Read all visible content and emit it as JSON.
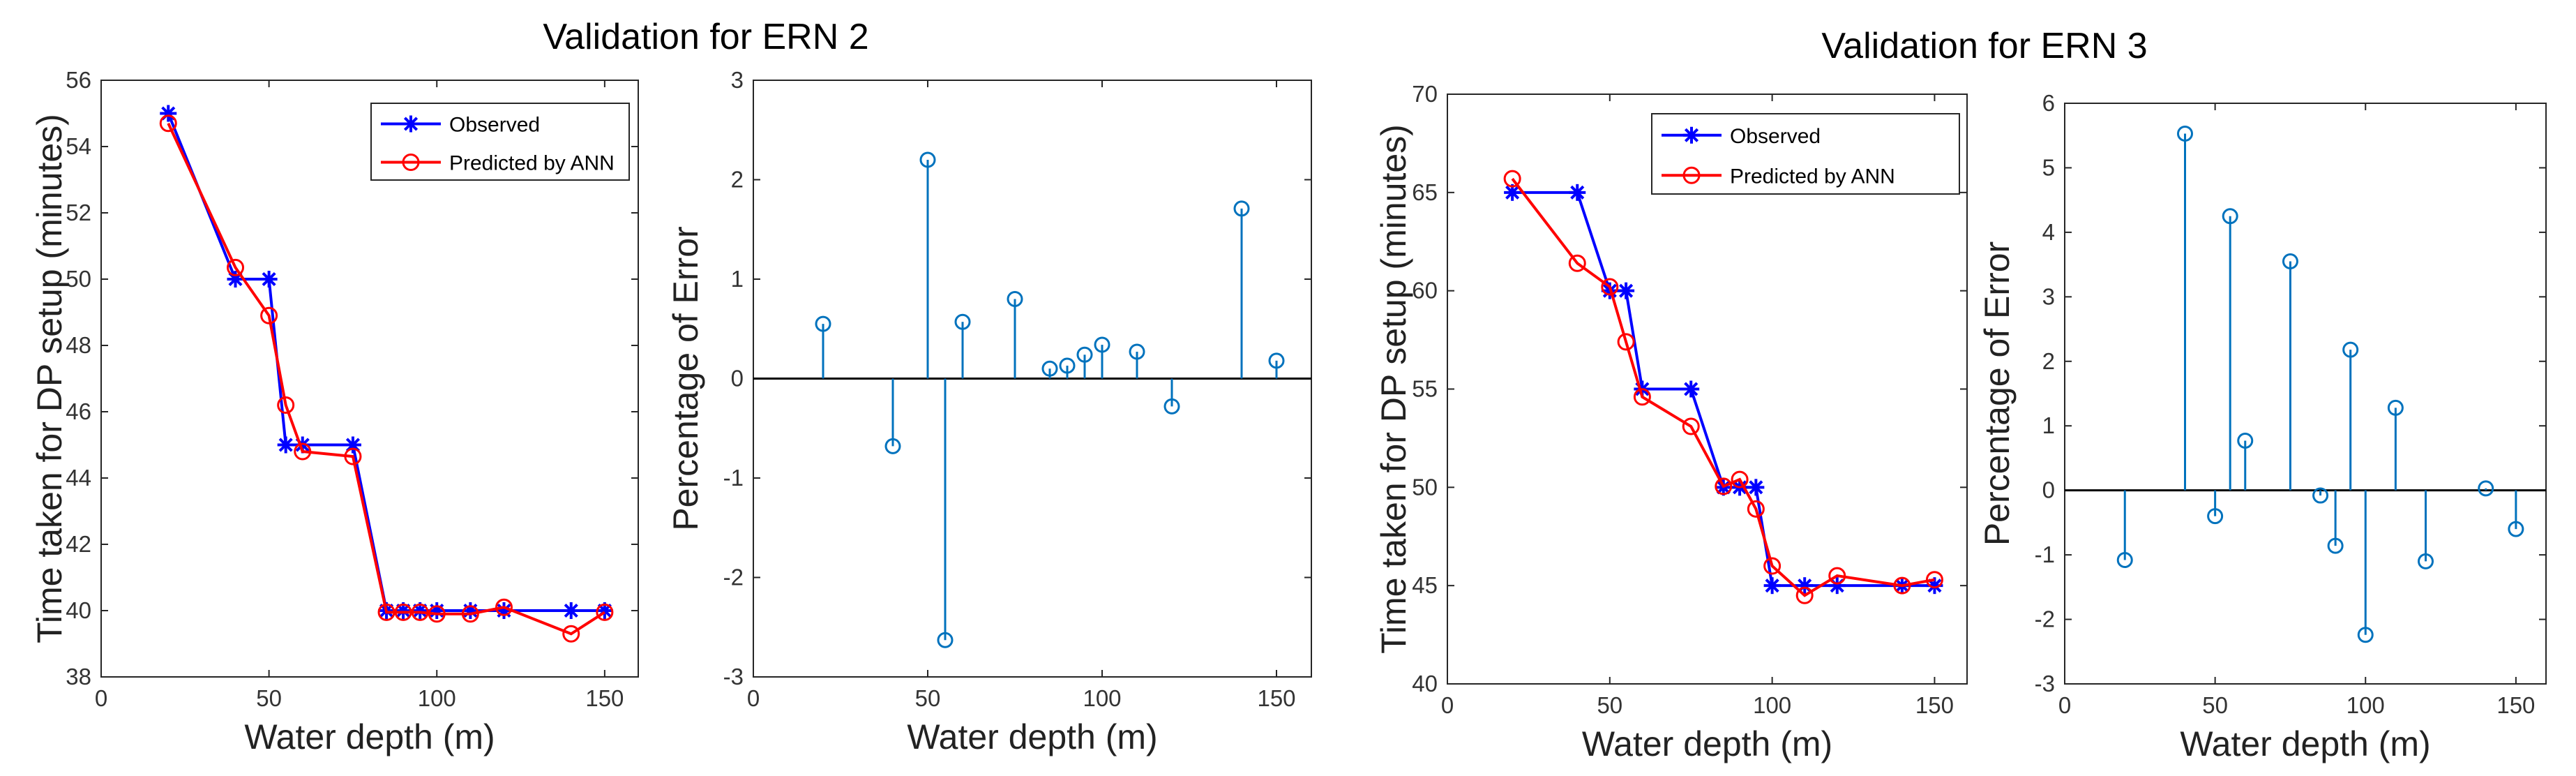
{
  "chart_data": [
    {
      "type": "line",
      "group_title": "Validation for ERN 2",
      "title": "",
      "xlabel": "Water depth (m)",
      "ylabel": "Time taken for DP setup (minutes)",
      "xlim": [
        0,
        160
      ],
      "ylim": [
        38,
        56
      ],
      "xticks": [
        "0",
        "50",
        "100",
        "150"
      ],
      "yticks": [
        "38",
        "40",
        "42",
        "44",
        "46",
        "48",
        "50",
        "52",
        "54",
        "56"
      ],
      "legend_position": "top-right",
      "series": [
        {
          "name": "Observed",
          "color": "#0000ff",
          "marker": "asterisk",
          "x": [
            20,
            40,
            50,
            55,
            60,
            75,
            85,
            90,
            95,
            100,
            110,
            120,
            140,
            150
          ],
          "y": [
            55,
            50,
            50,
            45,
            45,
            45,
            40,
            40,
            40,
            40,
            40,
            40,
            40,
            40
          ]
        },
        {
          "name": "Predicted by ANN",
          "color": "#ff0000",
          "marker": "circle",
          "x": [
            20,
            40,
            50,
            55,
            60,
            75,
            85,
            90,
            95,
            100,
            110,
            120,
            140,
            150
          ],
          "y": [
            54.7,
            50.35,
            48.9,
            46.2,
            44.8,
            44.65,
            39.95,
            39.95,
            39.95,
            39.9,
            39.9,
            40.1,
            39.3,
            39.95
          ]
        }
      ]
    },
    {
      "type": "stem",
      "title": "",
      "xlabel": "Water depth (m)",
      "ylabel": "Percentage of Error",
      "xlim": [
        0,
        160
      ],
      "ylim": [
        -3,
        3
      ],
      "xticks": [
        "0",
        "50",
        "100",
        "150"
      ],
      "yticks": [
        "-3",
        "-2",
        "-1",
        "0",
        "1",
        "2",
        "3"
      ],
      "color": "#0072bd",
      "x": [
        20,
        40,
        50,
        55,
        60,
        75,
        85,
        90,
        95,
        100,
        110,
        120,
        140,
        150
      ],
      "y": [
        0.55,
        -0.68,
        2.2,
        -2.63,
        0.57,
        0.8,
        0.1,
        0.13,
        0.24,
        0.34,
        0.27,
        -0.28,
        1.71,
        0.18
      ]
    },
    {
      "type": "line",
      "group_title": "Validation for ERN 3",
      "title": "",
      "xlabel": "Water depth (m)",
      "ylabel": "Time taken for DP setup (minutes)",
      "xlim": [
        0,
        160
      ],
      "ylim": [
        40,
        70
      ],
      "xticks": [
        "0",
        "50",
        "100",
        "150"
      ],
      "yticks": [
        "40",
        "45",
        "50",
        "55",
        "60",
        "65",
        "70"
      ],
      "legend_position": "top-right",
      "series": [
        {
          "name": "Observed",
          "color": "#0000ff",
          "marker": "asterisk",
          "x": [
            20,
            40,
            50,
            55,
            60,
            75,
            85,
            90,
            95,
            100,
            110,
            120,
            140,
            150
          ],
          "y": [
            65,
            65,
            60,
            60,
            55,
            55,
            50,
            50,
            50,
            45,
            45,
            45,
            45,
            45
          ]
        },
        {
          "name": "Predicted by ANN",
          "color": "#ff0000",
          "marker": "circle",
          "x": [
            20,
            40,
            50,
            55,
            60,
            75,
            85,
            90,
            95,
            100,
            110,
            120,
            140,
            150
          ],
          "y": [
            65.7,
            61.4,
            60.2,
            57.4,
            54.6,
            53.1,
            50.05,
            50.4,
            48.9,
            46.0,
            44.5,
            45.5,
            45.0,
            45.3
          ]
        }
      ]
    },
    {
      "type": "stem",
      "title": "",
      "xlabel": "Water depth (m)",
      "ylabel": "Percentage of Error",
      "xlim": [
        0,
        160
      ],
      "ylim": [
        -3,
        6
      ],
      "xticks": [
        "0",
        "50",
        "100",
        "150"
      ],
      "yticks": [
        "-3",
        "-2",
        "-1",
        "0",
        "1",
        "2",
        "3",
        "4",
        "5",
        "6"
      ],
      "color": "#0072bd",
      "x": [
        20,
        40,
        50,
        55,
        60,
        75,
        85,
        90,
        95,
        100,
        110,
        120,
        140,
        150
      ],
      "y": [
        -1.08,
        5.53,
        -0.4,
        4.25,
        0.77,
        3.55,
        -0.08,
        -0.86,
        2.18,
        -2.24,
        1.28,
        -1.1,
        0.03,
        -0.6
      ]
    }
  ]
}
